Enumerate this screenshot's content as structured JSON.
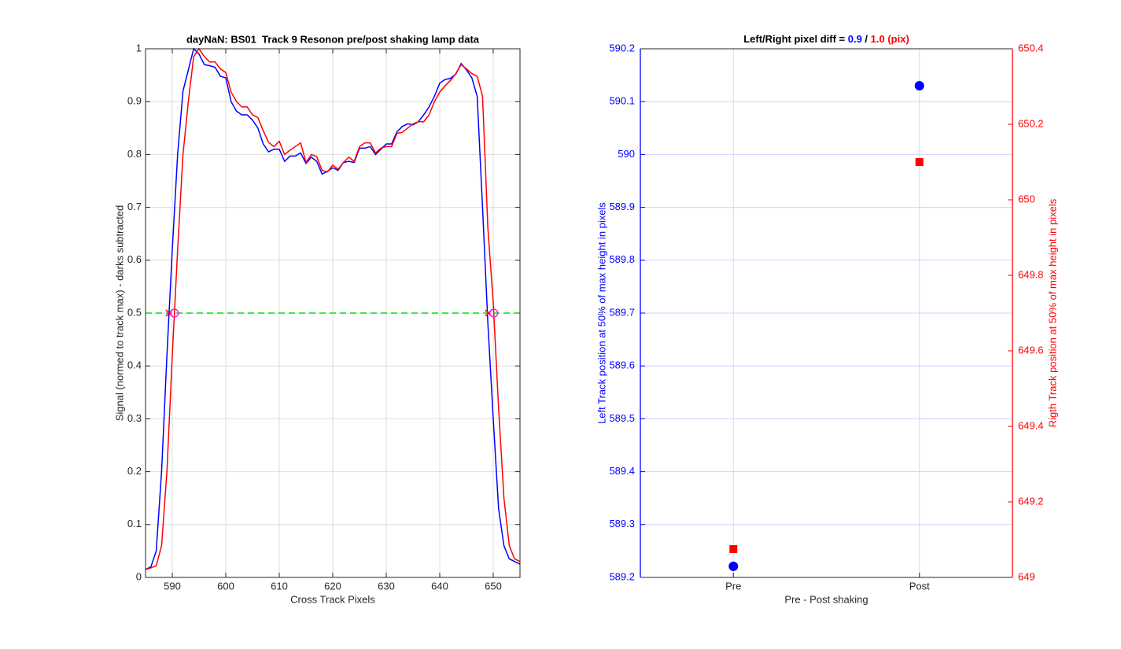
{
  "chart_data": [
    {
      "type": "line",
      "title": "dayNaN: BS01  Track 9 Resonon pre/post shaking lamp data",
      "xlabel": "Cross Track Pixels",
      "ylabel": "Signal (normed to track max) - darks subtracted",
      "x": [
        585,
        586,
        587,
        588,
        589,
        590,
        591,
        592,
        593,
        594,
        595,
        596,
        597,
        598,
        599,
        600,
        601,
        602,
        603,
        604,
        605,
        606,
        607,
        608,
        609,
        610,
        611,
        612,
        613,
        614,
        615,
        616,
        617,
        618,
        619,
        620,
        621,
        622,
        623,
        624,
        625,
        626,
        627,
        628,
        629,
        630,
        631,
        632,
        633,
        634,
        635,
        636,
        637,
        638,
        639,
        640,
        641,
        642,
        643,
        644,
        645,
        646,
        647,
        648,
        649,
        650,
        651,
        652,
        653,
        654,
        655
      ],
      "series": [
        {
          "color": "#0000ff",
          "values": [
            0.015,
            0.02,
            0.05,
            0.2,
            0.42,
            0.62,
            0.8,
            0.92,
            0.96,
            1.0,
            0.99,
            0.97,
            0.968,
            0.965,
            0.948,
            0.945,
            0.9,
            0.882,
            0.875,
            0.875,
            0.865,
            0.85,
            0.82,
            0.805,
            0.81,
            0.81,
            0.787,
            0.797,
            0.797,
            0.803,
            0.783,
            0.795,
            0.787,
            0.763,
            0.768,
            0.775,
            0.77,
            0.785,
            0.787,
            0.785,
            0.812,
            0.812,
            0.815,
            0.8,
            0.81,
            0.82,
            0.82,
            0.843,
            0.853,
            0.858,
            0.856,
            0.862,
            0.875,
            0.89,
            0.91,
            0.935,
            0.942,
            0.944,
            0.952,
            0.972,
            0.96,
            0.945,
            0.91,
            0.7,
            0.48,
            0.3,
            0.13,
            0.06,
            0.035,
            0.03,
            0.025
          ]
        },
        {
          "color": "#ff0000",
          "values": [
            0.015,
            0.018,
            0.022,
            0.06,
            0.2,
            0.42,
            0.62,
            0.8,
            0.9,
            0.985,
            1.0,
            0.985,
            0.975,
            0.975,
            0.962,
            0.955,
            0.918,
            0.9,
            0.89,
            0.89,
            0.875,
            0.87,
            0.845,
            0.823,
            0.815,
            0.825,
            0.8,
            0.808,
            0.815,
            0.822,
            0.785,
            0.8,
            0.796,
            0.77,
            0.767,
            0.78,
            0.772,
            0.785,
            0.795,
            0.787,
            0.815,
            0.822,
            0.822,
            0.803,
            0.812,
            0.815,
            0.815,
            0.84,
            0.842,
            0.85,
            0.858,
            0.862,
            0.862,
            0.875,
            0.9,
            0.918,
            0.93,
            0.94,
            0.953,
            0.97,
            0.962,
            0.953,
            0.948,
            0.91,
            0.66,
            0.52,
            0.32,
            0.15,
            0.06,
            0.035,
            0.03
          ]
        }
      ],
      "hline": {
        "value": 0.5,
        "color": "#00e000",
        "style": "dashed"
      },
      "markers": [
        {
          "color": "#ff0000",
          "marker": "x",
          "x": [
            589.4,
            649.1
          ],
          "y": [
            0.5,
            0.5
          ]
        },
        {
          "color": "#ff00ff",
          "marker": "circle",
          "x": [
            590.4,
            650.1
          ],
          "y": [
            0.5,
            0.5
          ]
        }
      ],
      "xlim": [
        585,
        655
      ],
      "xticks": [
        590,
        600,
        610,
        620,
        630,
        640,
        650
      ],
      "ylim": [
        0,
        1
      ],
      "yticks": [
        0,
        0.1,
        0.2,
        0.3,
        0.4,
        0.5,
        0.6,
        0.7,
        0.8,
        0.9,
        1
      ],
      "grid": true
    },
    {
      "type": "scatter",
      "title_parts": [
        {
          "text": "Left/Right pixel diff = ",
          "color": "#000000"
        },
        {
          "text": "0.9",
          "color": "#0000ff"
        },
        {
          "text": " / ",
          "color": "#000000"
        },
        {
          "text": "1.0",
          "color": "#ff0000"
        },
        {
          "text": " (pix)",
          "color": "#ff0000"
        }
      ],
      "xlabel": "Pre - Post shaking",
      "ylabel": "Left Track position at 50% of max height in pixels",
      "y2label": "Rigth Track position at 50% of max height in pixels",
      "categories": [
        "Pre",
        "Post"
      ],
      "series": [
        {
          "color": "#0000ff",
          "marker": "circle",
          "values": [
            589.221,
            590.13
          ]
        },
        {
          "color": "#ff0000",
          "marker": "square",
          "axis": "y2",
          "values": [
            649.075,
            650.1
          ]
        }
      ],
      "ylim": [
        589.2,
        590.2
      ],
      "yticks": [
        589.2,
        589.3,
        589.4,
        589.5,
        589.6,
        589.7,
        589.8,
        589.9,
        590,
        590.1,
        590.2
      ],
      "y2lim": [
        649,
        650.4
      ],
      "y2ticks": [
        649,
        649.2,
        649.4,
        649.6,
        649.8,
        650,
        650.2,
        650.4
      ],
      "ycolor": "#0000ff",
      "y2color": "#ff0000",
      "grid": true
    }
  ]
}
